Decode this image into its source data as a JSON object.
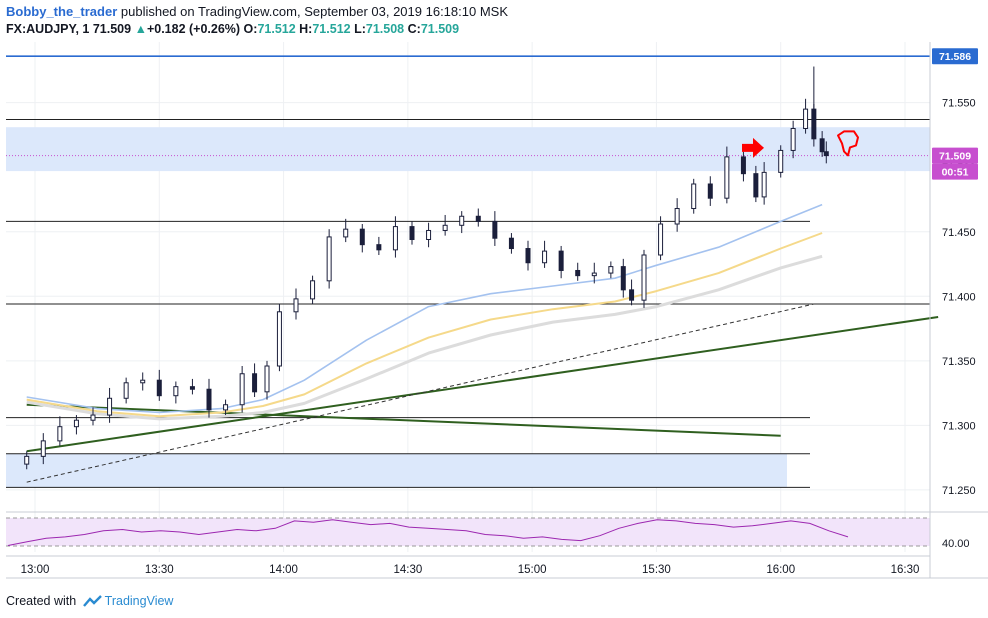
{
  "header": {
    "author": "Bobby_the_trader",
    "published_text": "published on TradingView.com, September 03, 2019 16:18:10 MSK",
    "symbol": "FX:AUDJPY, 1",
    "last": "71.509",
    "change_arrow": "▲",
    "change": "+0.182 (+0.26%)",
    "o_label": "O:",
    "o": "71.512",
    "h_label": "H:",
    "h": "71.512",
    "l_label": "L:",
    "l": "71.508",
    "c_label": "C:",
    "c": "71.509"
  },
  "footer": {
    "created_with": "Created with",
    "brand": "TradingView"
  },
  "colors": {
    "up_text": "#26a69a",
    "candle": "#1b1f3b",
    "ma_fast": "#a4c2ef",
    "ma_mid": "#f5d98a",
    "ma_slow": "#dcdcdc",
    "trendline": "#2f5f1f",
    "zone": "#dce8fb",
    "top_line": "#2a6bd1",
    "price_label": "#c74fcf",
    "rsi": "#9c27b0",
    "rsi_bg": "#f2e4fa",
    "annotation": "#ff0000"
  },
  "chart_data": {
    "type": "candlestick",
    "symbol": "FX:AUDJPY",
    "interval": "1",
    "x_ticks": [
      "13:00",
      "13:30",
      "14:00",
      "14:30",
      "15:00",
      "15:30",
      "16:00",
      "16:30"
    ],
    "y_ticks": [
      71.25,
      71.3,
      71.35,
      71.4,
      71.45,
      71.5,
      71.55
    ],
    "y_tick_labels": [
      "71.250",
      "71.300",
      "71.350",
      "71.400",
      "71.450",
      "71.500",
      "71.550"
    ],
    "ylim": [
      71.236,
      71.597
    ],
    "xlim_minutes": [
      12.93,
      16.62
    ],
    "price_labels": {
      "top_line": "71.586",
      "last_price": "71.509",
      "countdown": "00:51"
    },
    "close_series": [
      {
        "t": "12:58",
        "c": 71.276
      },
      {
        "t": "13:02",
        "c": 71.288
      },
      {
        "t": "13:06",
        "c": 71.299
      },
      {
        "t": "13:10",
        "c": 71.304
      },
      {
        "t": "13:14",
        "c": 71.308
      },
      {
        "t": "13:18",
        "c": 71.321
      },
      {
        "t": "13:22",
        "c": 71.333
      },
      {
        "t": "13:26",
        "c": 71.335
      },
      {
        "t": "13:30",
        "c": 71.323
      },
      {
        "t": "13:34",
        "c": 71.33
      },
      {
        "t": "13:38",
        "c": 71.328
      },
      {
        "t": "13:42",
        "c": 71.312
      },
      {
        "t": "13:46",
        "c": 71.316
      },
      {
        "t": "13:50",
        "c": 71.34
      },
      {
        "t": "13:53",
        "c": 71.326
      },
      {
        "t": "13:56",
        "c": 71.346
      },
      {
        "t": "13:59",
        "c": 71.388
      },
      {
        "t": "14:03",
        "c": 71.398
      },
      {
        "t": "14:07",
        "c": 71.412
      },
      {
        "t": "14:11",
        "c": 71.446
      },
      {
        "t": "14:15",
        "c": 71.452
      },
      {
        "t": "14:19",
        "c": 71.44
      },
      {
        "t": "14:23",
        "c": 71.436
      },
      {
        "t": "14:27",
        "c": 71.454
      },
      {
        "t": "14:31",
        "c": 71.444
      },
      {
        "t": "14:35",
        "c": 71.451
      },
      {
        "t": "14:39",
        "c": 71.455
      },
      {
        "t": "14:43",
        "c": 71.462
      },
      {
        "t": "14:47",
        "c": 71.458
      },
      {
        "t": "14:51",
        "c": 71.445
      },
      {
        "t": "14:55",
        "c": 71.437
      },
      {
        "t": "14:59",
        "c": 71.426
      },
      {
        "t": "15:03",
        "c": 71.435
      },
      {
        "t": "15:07",
        "c": 71.42
      },
      {
        "t": "15:11",
        "c": 71.416
      },
      {
        "t": "15:15",
        "c": 71.418
      },
      {
        "t": "15:19",
        "c": 71.423
      },
      {
        "t": "15:22",
        "c": 71.405
      },
      {
        "t": "15:24",
        "c": 71.397
      },
      {
        "t": "15:27",
        "c": 71.432
      },
      {
        "t": "15:31",
        "c": 71.456
      },
      {
        "t": "15:35",
        "c": 71.468
      },
      {
        "t": "15:39",
        "c": 71.487
      },
      {
        "t": "15:43",
        "c": 71.476
      },
      {
        "t": "15:47",
        "c": 71.508
      },
      {
        "t": "15:51",
        "c": 71.495
      },
      {
        "t": "15:54",
        "c": 71.477
      },
      {
        "t": "15:56",
        "c": 71.496
      },
      {
        "t": "16:00",
        "c": 71.513
      },
      {
        "t": "16:03",
        "c": 71.53
      },
      {
        "t": "16:06",
        "c": 71.545
      },
      {
        "t": "16:08",
        "c": 71.522
      },
      {
        "t": "16:10",
        "c": 71.512
      },
      {
        "t": "16:11",
        "c": 71.509
      }
    ],
    "moving_averages": {
      "fast": [
        71.322,
        71.313,
        71.31,
        71.313,
        71.32,
        71.335,
        71.366,
        71.392,
        71.402,
        71.408,
        71.414,
        71.424,
        71.438,
        71.458,
        71.471
      ],
      "mid": [
        71.32,
        71.311,
        71.307,
        71.31,
        71.315,
        71.324,
        71.348,
        71.368,
        71.382,
        71.39,
        71.396,
        71.404,
        71.418,
        71.437,
        71.449
      ],
      "slow": [
        71.318,
        71.309,
        71.305,
        71.307,
        71.31,
        71.317,
        71.336,
        71.356,
        71.37,
        71.38,
        71.386,
        71.392,
        71.405,
        71.422,
        71.431
      ],
      "t": [
        "12:58",
        "13:15",
        "13:30",
        "13:45",
        "13:55",
        "14:05",
        "14:20",
        "14:35",
        "14:50",
        "15:05",
        "15:20",
        "15:30",
        "15:45",
        "16:00",
        "16:10"
      ]
    },
    "horizontal_levels": [
      71.586,
      71.537,
      71.458,
      71.394,
      71.306,
      71.278,
      71.252
    ],
    "zones": [
      {
        "from": 71.497,
        "to": 71.531
      },
      {
        "from": 71.252,
        "to": 71.278
      }
    ],
    "rsi": {
      "y_tick": "40.00",
      "values": [
        38,
        41,
        44,
        45,
        47,
        50,
        51,
        49,
        50,
        49,
        47,
        49,
        51,
        50,
        52,
        58,
        57,
        59,
        57,
        55,
        56,
        53,
        52,
        51,
        50,
        47,
        46,
        44,
        45,
        43,
        42,
        46,
        52,
        56,
        59,
        58,
        56,
        55,
        53,
        54,
        56,
        58,
        56,
        50,
        45
      ]
    }
  }
}
